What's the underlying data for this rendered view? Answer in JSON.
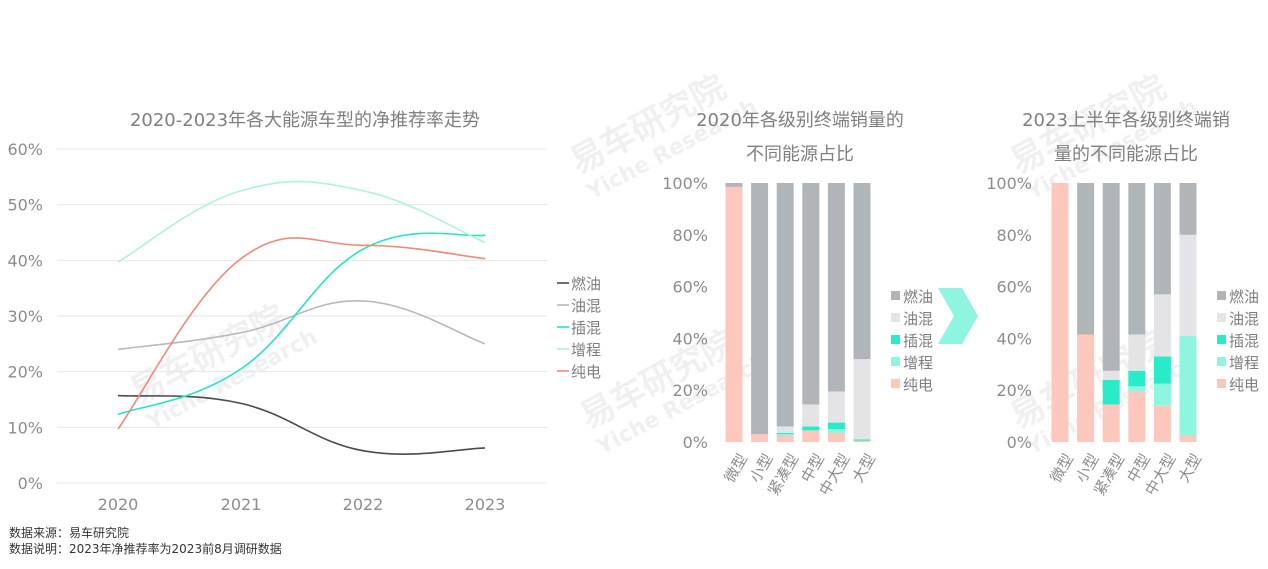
{
  "footer": {
    "source": "数据来源：易车研究院",
    "note": "数据说明：2023年净推荐率为2023前8月调研数据"
  },
  "watermark": {
    "cn": "易车研究院",
    "en": "Yiche Research"
  },
  "chart_data": [
    {
      "type": "line",
      "title": "2020-2023年各大能源车型的净推荐率走势",
      "x": [
        "2020",
        "2021",
        "2022",
        "2023"
      ],
      "ylim": [
        0,
        60
      ],
      "yticks": [
        "0%",
        "10%",
        "20%",
        "30%",
        "40%",
        "50%",
        "60%"
      ],
      "grid": true,
      "legend_position": "right",
      "series": [
        {
          "name": "燃油",
          "color": "#4a4a4f",
          "values": [
            15.7,
            14.3,
            5.8,
            6.3
          ]
        },
        {
          "name": "油混",
          "color": "#b9b9bd",
          "values": [
            24.0,
            27.0,
            32.7,
            25.0
          ]
        },
        {
          "name": "插混",
          "color": "#22e6c0",
          "values": [
            12.3,
            20.5,
            42.0,
            44.5
          ]
        },
        {
          "name": "增程",
          "color": "#aaf5d2",
          "values": [
            39.7,
            52.5,
            52.5,
            43.2
          ]
        },
        {
          "name": "纯电",
          "color": "#f2887a",
          "values": [
            9.7,
            40.3,
            42.7,
            40.3
          ]
        }
      ]
    },
    {
      "type": "bar",
      "stacked": true,
      "title": "2020年各级别终端销量的\n不同能源占比",
      "title_lines": [
        "2020年各级别终端销量的",
        "不同能源占比"
      ],
      "categories": [
        "微型",
        "小型",
        "紧凑型",
        "中型",
        "中大型",
        "大型"
      ],
      "ylim": [
        0,
        100
      ],
      "yticks": [
        "0%",
        "20%",
        "40%",
        "60%",
        "80%",
        "100%"
      ],
      "legend_position": "right",
      "series": [
        {
          "name": "纯电",
          "color": "#fcc8bd",
          "values": [
            98.5,
            3,
            2.5,
            4.5,
            3.5,
            0.5
          ]
        },
        {
          "name": "增程",
          "color": "#8ff5de",
          "values": [
            0,
            0,
            0.5,
            0,
            1.5,
            0
          ]
        },
        {
          "name": "插混",
          "color": "#28ebc9",
          "values": [
            0,
            0,
            0.5,
            1.5,
            2.5,
            0.5
          ]
        },
        {
          "name": "油混",
          "color": "#e4e4e6",
          "values": [
            0,
            0,
            2.5,
            8.5,
            12,
            31
          ]
        },
        {
          "name": "燃油",
          "color": "#b2b5b8",
          "values": [
            1.5,
            97,
            94,
            85.5,
            80.5,
            68
          ]
        }
      ]
    },
    {
      "type": "bar",
      "stacked": true,
      "title": "2023上半年各级别终端销\n量的不同能源占比",
      "title_lines": [
        "2023上半年各级别终端销",
        "量的不同能源占比"
      ],
      "categories": [
        "微型",
        "小型",
        "紧凑型",
        "中型",
        "中大型",
        "大型"
      ],
      "ylim": [
        0,
        100
      ],
      "yticks": [
        "0%",
        "20%",
        "40%",
        "60%",
        "80%",
        "100%"
      ],
      "legend_position": "right",
      "series": [
        {
          "name": "纯电",
          "color": "#fcc8bd",
          "values": [
            100,
            41.5,
            14.5,
            19.5,
            14,
            2.5
          ]
        },
        {
          "name": "增程",
          "color": "#8ff5de",
          "values": [
            0,
            0,
            0,
            2,
            8.5,
            38.5
          ]
        },
        {
          "name": "插混",
          "color": "#28ebc9",
          "values": [
            0,
            0,
            9.5,
            6,
            10.5,
            0
          ]
        },
        {
          "name": "油混",
          "color": "#e4e4e6",
          "values": [
            0,
            0,
            3.5,
            14,
            24,
            39
          ]
        },
        {
          "name": "燃油",
          "color": "#b2b5b8",
          "values": [
            0,
            58.5,
            72.5,
            58.5,
            43,
            20
          ]
        }
      ]
    }
  ]
}
